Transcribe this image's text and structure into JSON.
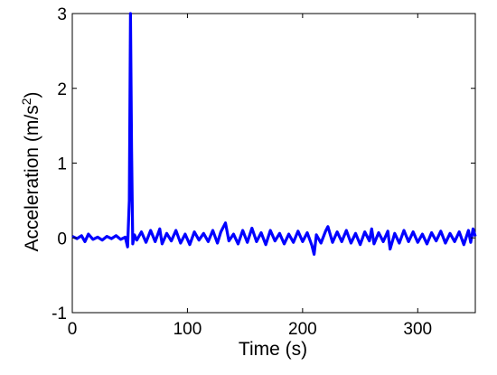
{
  "chart_data": {
    "type": "line",
    "xlabel": "Time (s)",
    "ylabel_main": "Acceleration (m/s",
    "ylabel_sup": "2",
    "ylabel_close": ")",
    "xlim": [
      0,
      350
    ],
    "ylim": [
      -1,
      3
    ],
    "xticks": [
      0,
      100,
      200,
      300
    ],
    "yticks": [
      -1,
      0,
      1,
      2,
      3
    ],
    "grid": false,
    "line_color": "#0000ff",
    "series": [
      {
        "x": [
          0,
          4,
          8,
          11,
          14,
          18,
          22,
          26,
          30,
          34,
          38,
          42,
          46,
          48,
          49.5,
          50.5,
          51.5,
          52.5,
          54,
          56,
          60,
          64,
          68,
          72,
          76,
          78,
          82,
          86,
          90,
          94,
          98,
          102,
          106,
          110,
          114,
          118,
          122,
          126,
          129,
          133,
          136,
          140,
          144,
          148,
          152,
          156,
          160,
          164,
          168,
          172,
          176,
          180,
          184,
          188,
          192,
          196,
          200,
          204,
          208,
          210,
          212,
          216,
          220,
          222,
          226,
          230,
          234,
          238,
          242,
          246,
          250,
          254,
          258,
          260,
          262,
          266,
          270,
          274,
          276,
          280,
          284,
          288,
          292,
          296,
          300,
          304,
          308,
          312,
          316,
          320,
          324,
          328,
          332,
          336,
          340,
          344,
          346,
          348,
          350
        ],
        "y": [
          0.02,
          -0.01,
          0.03,
          -0.05,
          0.05,
          -0.02,
          0.01,
          -0.03,
          0.02,
          -0.01,
          0.03,
          -0.02,
          0.01,
          -0.12,
          0.5,
          3.0,
          1.2,
          -0.08,
          0.04,
          -0.03,
          0.08,
          -0.06,
          0.1,
          -0.05,
          0.12,
          -0.08,
          0.06,
          -0.04,
          0.1,
          -0.07,
          0.05,
          -0.09,
          0.08,
          -0.03,
          0.06,
          -0.05,
          0.1,
          -0.07,
          0.08,
          0.2,
          -0.04,
          0.05,
          -0.08,
          0.1,
          -0.06,
          0.13,
          -0.05,
          0.07,
          -0.09,
          0.1,
          -0.04,
          0.06,
          -0.08,
          0.05,
          -0.06,
          0.09,
          -0.05,
          0.07,
          -0.1,
          -0.22,
          0.04,
          -0.07,
          0.09,
          0.15,
          -0.06,
          0.08,
          -0.05,
          0.1,
          -0.07,
          0.06,
          -0.09,
          0.08,
          -0.04,
          0.12,
          -0.08,
          0.07,
          -0.05,
          0.09,
          -0.15,
          0.06,
          -0.07,
          0.1,
          -0.05,
          0.08,
          -0.06,
          0.05,
          -0.08,
          0.07,
          -0.04,
          0.09,
          -0.07,
          0.06,
          -0.05,
          0.08,
          -0.09,
          0.1,
          -0.06,
          0.12,
          0.02
        ]
      }
    ]
  }
}
